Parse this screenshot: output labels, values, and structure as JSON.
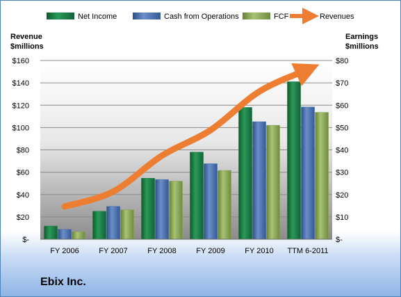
{
  "chart_data": {
    "type": "bar",
    "title": "",
    "company": "Ebix Inc.",
    "categories": [
      "FY 2006",
      "FY 2007",
      "FY 2008",
      "FY 2009",
      "FY 2010",
      "TTM 6-2011"
    ],
    "series": [
      {
        "name": "Net Income",
        "axis": "right",
        "values": [
          5.9,
          12.5,
          27.3,
          39.0,
          59.0,
          70.5
        ]
      },
      {
        "name": "Cash from Operations",
        "axis": "right",
        "values": [
          4.4,
          14.7,
          26.7,
          33.8,
          52.6,
          59.2
        ]
      },
      {
        "name": "FCF",
        "axis": "right",
        "values": [
          3.4,
          13.2,
          26.0,
          30.8,
          51.0,
          56.8
        ]
      },
      {
        "name": "Revenues",
        "axis": "left",
        "type": "line",
        "values": [
          29.3,
          42.7,
          74.8,
          97.7,
          132.2,
          151.9
        ]
      }
    ],
    "ylabel_left": "Revenue\n$millions",
    "ylabel_right": "Earnings\n$millions",
    "ylim_left": [
      0,
      160
    ],
    "ylim_right": [
      0,
      80
    ],
    "yticks_left": [
      "$-",
      "$20",
      "$40",
      "$60",
      "$80",
      "$100",
      "$120",
      "$140",
      "$160"
    ],
    "yticks_right": [
      "$-",
      "$10",
      "$20",
      "$30",
      "$40",
      "$50",
      "$60",
      "$70",
      "$80"
    ],
    "legend_position": "top",
    "grid": true,
    "colors": {
      "net_income": "#1e7a43",
      "cash_from_operations": "#4a6fae",
      "fcf": "#8aa553",
      "revenues": "#ed7d31"
    }
  }
}
